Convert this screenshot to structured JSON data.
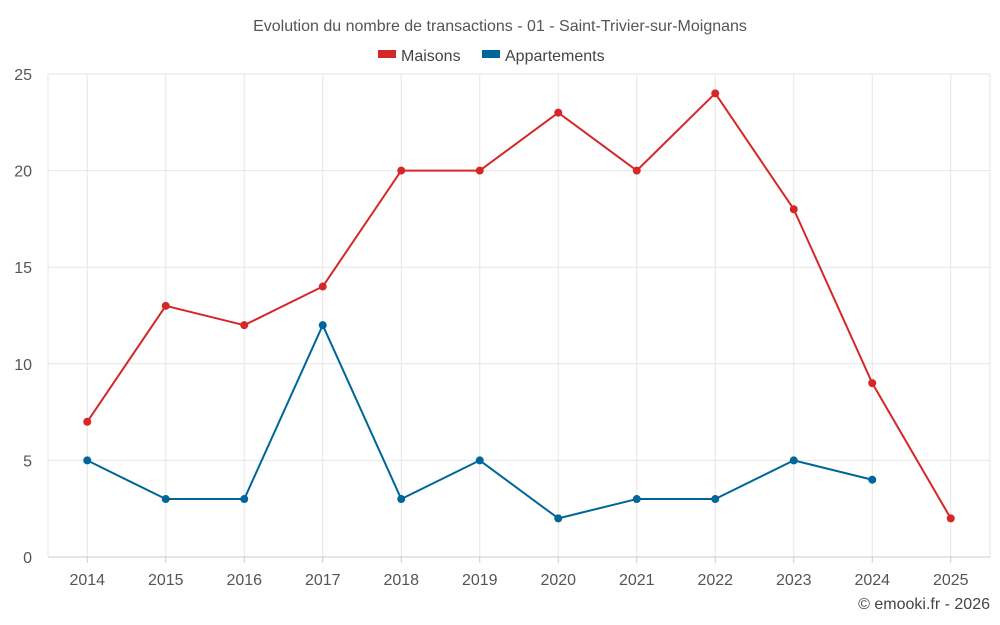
{
  "chart_data": {
    "type": "line",
    "title": "Evolution du nombre de transactions - 01 - Saint-Trivier-sur-Moignans",
    "categories": [
      "2014",
      "2015",
      "2016",
      "2017",
      "2018",
      "2019",
      "2020",
      "2021",
      "2022",
      "2023",
      "2024",
      "2025"
    ],
    "series": [
      {
        "name": "Maisons",
        "color": "#d62728",
        "values": [
          7,
          13,
          12,
          14,
          20,
          20,
          23,
          20,
          24,
          18,
          9,
          2
        ]
      },
      {
        "name": "Appartements",
        "color": "#006699",
        "values": [
          5,
          3,
          3,
          12,
          3,
          5,
          2,
          3,
          3,
          5,
          4,
          null
        ]
      }
    ],
    "yticks": [
      0,
      5,
      10,
      15,
      20,
      25
    ],
    "ylim": [
      0,
      25
    ],
    "grid": true,
    "legend_position": "top-center"
  },
  "credit": "© emooki.fr - 2026"
}
